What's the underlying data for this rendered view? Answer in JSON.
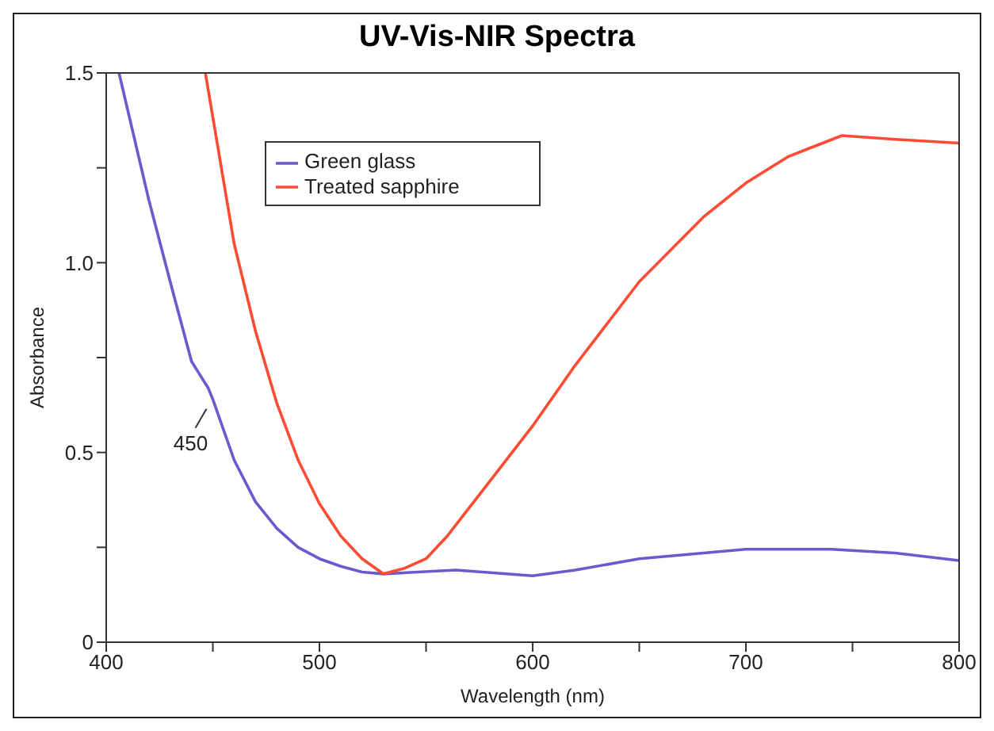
{
  "chart_data": {
    "type": "line",
    "title": "UV-Vis-NIR Spectra",
    "xlabel": "Wavelength (nm)",
    "ylabel": "Absorbance",
    "xlim": [
      400,
      800
    ],
    "ylim": [
      0,
      1.5
    ],
    "xticks": [
      400,
      {
        "value": 450,
        "label": null
      },
      500,
      {
        "value": 550,
        "label": null
      },
      600,
      {
        "value": 650,
        "label": null
      },
      700,
      {
        "value": 750,
        "label": null
      },
      800
    ],
    "yticks": [
      0,
      {
        "value": 0.25,
        "label": null
      },
      {
        "value": 0.5,
        "label": "0.5"
      },
      {
        "value": 0.75,
        "label": null
      },
      {
        "value": 1.0,
        "label": "1.0"
      },
      {
        "value": 1.25,
        "label": null
      },
      {
        "value": 1.5,
        "label": "1.5"
      }
    ],
    "grid": false,
    "legend": "top left",
    "marker": "none",
    "line_style": "solid",
    "annotations": [
      {
        "text": "450",
        "x": 450,
        "y": 0.64
      }
    ],
    "series": [
      {
        "name": "Green glass",
        "color": "#6a5acd",
        "x": [
          406,
          420,
          430,
          440,
          447.8,
          450,
          460,
          470,
          480,
          490,
          500,
          510,
          520,
          530,
          564,
          600,
          620,
          650,
          700,
          740,
          770,
          800
        ],
        "values": [
          1.5,
          1.165,
          0.95,
          0.74,
          0.67,
          0.64,
          0.48,
          0.37,
          0.3,
          0.25,
          0.22,
          0.2,
          0.185,
          0.18,
          0.19,
          0.175,
          0.19,
          0.22,
          0.245,
          0.245,
          0.235,
          0.215
        ]
      },
      {
        "name": "Treated sapphire",
        "color": "#ff4b33",
        "x": [
          446.5,
          460,
          470,
          480,
          490,
          500,
          510,
          520,
          530,
          540,
          550,
          560,
          580,
          600,
          620,
          650,
          680,
          700,
          720,
          745,
          770,
          800
        ],
        "values": [
          1.5,
          1.05,
          0.82,
          0.63,
          0.48,
          0.365,
          0.28,
          0.22,
          0.18,
          0.195,
          0.22,
          0.28,
          0.425,
          0.57,
          0.73,
          0.95,
          1.12,
          1.21,
          1.28,
          1.335,
          1.325,
          1.315
        ]
      }
    ]
  }
}
